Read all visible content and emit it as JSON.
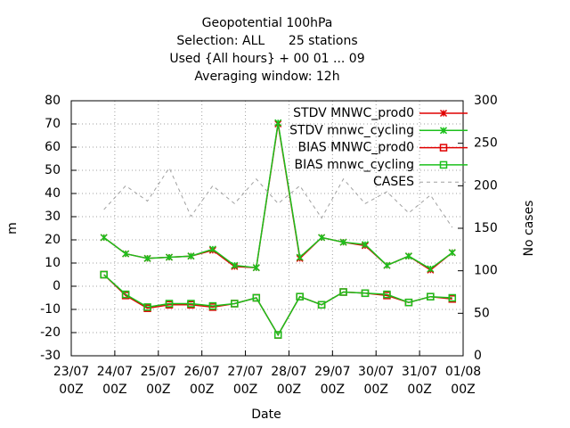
{
  "chart_data": {
    "type": "line",
    "title": [
      "Geopotential 100hPa",
      "Selection: ALL      25 stations",
      "Used {All hours} + 00 01 ... 09",
      "Averaging window: 12h"
    ],
    "x_label": "Date",
    "y_label": "m",
    "y2_label": "No cases",
    "xlim": [
      0,
      216
    ],
    "xticks": [
      {
        "value": 0,
        "label": "23/07\n00Z"
      },
      {
        "value": 24,
        "label": "24/07\n00Z"
      },
      {
        "value": 48,
        "label": "25/07\n00Z"
      },
      {
        "value": 72,
        "label": "26/07\n00Z"
      },
      {
        "value": 96,
        "label": "27/07\n00Z"
      },
      {
        "value": 120,
        "label": "28/07\n00Z"
      },
      {
        "value": 144,
        "label": "29/07\n00Z"
      },
      {
        "value": 168,
        "label": "30/07\n00Z"
      },
      {
        "value": 192,
        "label": "31/07\n00Z"
      },
      {
        "value": 216,
        "label": "01/08\n00Z"
      }
    ],
    "ylim": [
      -30,
      80
    ],
    "yticks": [
      -30,
      -20,
      -10,
      0,
      10,
      20,
      30,
      40,
      50,
      60,
      70,
      80
    ],
    "y2lim": [
      0,
      300
    ],
    "y2ticks": [
      0,
      50,
      100,
      150,
      200,
      250,
      300
    ],
    "grid": true,
    "legend": "top right",
    "x": [
      18,
      30,
      42,
      54,
      66,
      78,
      90,
      102,
      114,
      126,
      138,
      150,
      162,
      174,
      186,
      198,
      210
    ],
    "series": [
      {
        "name": "STDV MNWC_prod0",
        "color": "#e00000",
        "marker": "x",
        "values": [
          21,
          14,
          12,
          12.5,
          13,
          15.5,
          8.5,
          8,
          70,
          12,
          21,
          19,
          17.5,
          9,
          13,
          7,
          14.5
        ]
      },
      {
        "name": "STDV mnwc_cycling",
        "color": "#1cc01c",
        "marker": "x",
        "values": [
          21,
          14,
          12,
          12.5,
          13,
          16,
          9,
          8,
          70.5,
          12.5,
          21,
          19,
          18,
          9,
          13,
          7.5,
          14.5
        ]
      },
      {
        "name": "BIAS MNWC_prod0",
        "color": "#e00000",
        "marker": "square",
        "values": [
          5,
          -4,
          -9.5,
          -8,
          -8,
          -9,
          -7.5,
          -5,
          -21,
          -4.5,
          -8,
          -2.5,
          -3,
          -4,
          -7,
          -4.5,
          -5.5
        ]
      },
      {
        "name": "BIAS mnwc_cycling",
        "color": "#1cc01c",
        "marker": "square",
        "values": [
          5,
          -3.5,
          -9,
          -7.5,
          -7.5,
          -8.5,
          -7.5,
          -5,
          -21,
          -4.5,
          -8,
          -2.5,
          -3,
          -3.5,
          -7,
          -4.5,
          -5
        ]
      },
      {
        "name": "CASES",
        "color": "#a0a0a0",
        "marker": "none",
        "dash": true,
        "axis": "y2",
        "values": [
          172,
          200,
          182,
          221,
          164,
          200,
          179,
          208,
          179,
          200,
          162,
          208,
          179,
          193,
          168,
          189,
          151
        ]
      }
    ]
  }
}
